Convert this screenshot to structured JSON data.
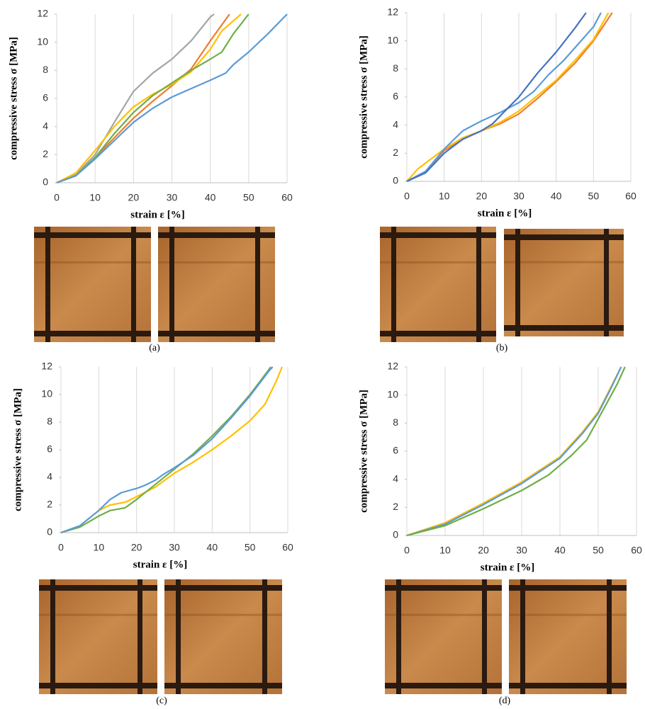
{
  "chart_data": [
    {
      "type": "line",
      "caption": "(a)",
      "ylabel": "compressive stress σ [MPa]",
      "xlabel": "strain ε [%]",
      "xlim": [
        0,
        60
      ],
      "xticks": [
        0,
        10,
        20,
        30,
        40,
        50,
        60
      ],
      "ylim": [
        0,
        12
      ],
      "yticks": [
        0,
        2,
        4,
        6,
        8,
        10,
        12
      ],
      "grid": true,
      "series": [
        {
          "color": "#a5a5a5",
          "x": [
            0,
            5,
            10,
            15,
            20,
            25,
            30,
            35,
            40,
            41
          ],
          "values": [
            0,
            0.6,
            2,
            4.3,
            6.5,
            7.8,
            8.8,
            10.1,
            11.8,
            12
          ]
        },
        {
          "color": "#ed7d31",
          "x": [
            0,
            5,
            10,
            15,
            20,
            25,
            30,
            35,
            40,
            45
          ],
          "values": [
            0,
            0.5,
            1.8,
            3.2,
            4.6,
            5.8,
            6.9,
            8.1,
            10.1,
            12
          ]
        },
        {
          "color": "#ffc000",
          "x": [
            0,
            5,
            10,
            15,
            20,
            25,
            30,
            35,
            40,
            43,
            48
          ],
          "values": [
            0,
            0.7,
            2.3,
            4,
            5.4,
            6.3,
            7,
            7.9,
            9.5,
            10.8,
            12
          ]
        },
        {
          "color": "#70ad47",
          "x": [
            0,
            5,
            10,
            15,
            20,
            25,
            30,
            35,
            40,
            43,
            46,
            50
          ],
          "values": [
            0,
            0.5,
            1.8,
            3.5,
            5,
            6.2,
            7.1,
            8,
            8.8,
            9.3,
            10.6,
            12
          ]
        },
        {
          "color": "#5b9bd5",
          "x": [
            0,
            5,
            10,
            15,
            20,
            25,
            30,
            35,
            40,
            44,
            46,
            50,
            55,
            60
          ],
          "values": [
            0,
            0.5,
            1.7,
            3,
            4.3,
            5.3,
            6.1,
            6.7,
            7.3,
            7.8,
            8.4,
            9.3,
            10.6,
            12
          ]
        }
      ]
    },
    {
      "type": "line",
      "caption": "(b)",
      "ylabel": "compressive stress σ [MPa]",
      "xlabel": "strain ε [%]",
      "xlim": [
        0,
        60
      ],
      "xticks": [
        0,
        10,
        20,
        30,
        40,
        50,
        60
      ],
      "ylim": [
        0,
        12
      ],
      "yticks": [
        0,
        2,
        4,
        6,
        8,
        10,
        12
      ],
      "grid": true,
      "series": [
        {
          "color": "#ed7d31",
          "x": [
            0,
            5,
            10,
            15,
            20,
            25,
            30,
            35,
            40,
            45,
            50,
            55
          ],
          "values": [
            0,
            0.7,
            2.2,
            3,
            3.6,
            4.1,
            4.8,
            5.9,
            7.1,
            8.4,
            10,
            12
          ]
        },
        {
          "color": "#ffc000",
          "x": [
            0,
            3,
            10,
            15,
            20,
            25,
            30,
            35,
            40,
            45,
            50,
            54
          ],
          "values": [
            0,
            0.9,
            2.3,
            3.1,
            3.6,
            4.2,
            5,
            6.1,
            7.2,
            8.6,
            10.1,
            12
          ]
        },
        {
          "color": "#5b9bd5",
          "x": [
            0,
            5,
            10,
            15,
            20,
            25,
            30,
            34,
            38,
            42,
            46,
            50,
            52
          ],
          "values": [
            0,
            0.7,
            2.3,
            3.6,
            4.3,
            4.9,
            5.6,
            6.4,
            7.6,
            8.6,
            9.8,
            11,
            12
          ]
        },
        {
          "color": "#4472c4",
          "x": [
            0,
            5,
            10,
            15,
            20,
            23,
            27,
            30,
            35,
            40,
            45,
            48
          ],
          "values": [
            0,
            0.6,
            2,
            3,
            3.6,
            4.1,
            5.2,
            6,
            7.7,
            9.2,
            10.9,
            12
          ]
        }
      ]
    },
    {
      "type": "line",
      "caption": "(c)",
      "ylabel": "compressive stress σ [MPa]",
      "xlabel": "strain ε [%]",
      "xlim": [
        0,
        60
      ],
      "xticks": [
        0,
        10,
        20,
        30,
        40,
        50,
        60
      ],
      "ylim": [
        0,
        12
      ],
      "yticks": [
        0,
        2,
        4,
        6,
        8,
        10,
        12
      ],
      "grid": true,
      "series": [
        {
          "color": "#ffc000",
          "x": [
            0,
            5,
            10,
            13,
            17,
            20,
            25,
            30,
            35,
            40,
            45,
            50,
            54,
            57,
            58.5
          ],
          "values": [
            0,
            0.5,
            1.6,
            2,
            2.2,
            2.6,
            3.3,
            4.3,
            5.1,
            6,
            7,
            8.1,
            9.3,
            11,
            12
          ]
        },
        {
          "color": "#70ad47",
          "x": [
            0,
            5,
            10,
            13,
            17,
            20,
            25,
            30,
            35,
            40,
            45,
            50,
            55,
            55.5
          ],
          "values": [
            0,
            0.4,
            1.2,
            1.6,
            1.8,
            2.4,
            3.5,
            4.6,
            5.7,
            7,
            8.4,
            10,
            11.8,
            12
          ]
        },
        {
          "color": "#5b9bd5",
          "x": [
            0,
            5,
            10,
            13,
            16,
            20,
            22,
            25,
            27,
            30,
            35,
            40,
            45,
            50,
            55,
            56
          ],
          "values": [
            0,
            0.5,
            1.6,
            2.4,
            2.9,
            3.2,
            3.4,
            3.8,
            4.2,
            4.7,
            5.6,
            6.8,
            8.3,
            9.9,
            11.7,
            12
          ]
        }
      ]
    },
    {
      "type": "line",
      "caption": "(d)",
      "ylabel": "compressive stress σ [MPa]",
      "xlabel": "strain ε [%]",
      "xlim": [
        0,
        60
      ],
      "xticks": [
        0,
        10,
        20,
        30,
        40,
        50,
        60
      ],
      "ylim": [
        0,
        12
      ],
      "yticks": [
        0,
        2,
        4,
        6,
        8,
        10,
        12
      ],
      "grid": true,
      "series": [
        {
          "color": "#ffc000",
          "x": [
            0,
            10,
            20,
            30,
            40,
            46,
            50,
            53,
            56
          ],
          "values": [
            0,
            0.9,
            2.3,
            3.8,
            5.6,
            7.4,
            8.8,
            10.4,
            12
          ]
        },
        {
          "color": "#5b9bd5",
          "x": [
            0,
            10,
            20,
            30,
            40,
            46,
            50,
            53,
            56
          ],
          "values": [
            0,
            0.8,
            2.2,
            3.7,
            5.5,
            7.3,
            8.7,
            10.3,
            12
          ]
        },
        {
          "color": "#70ad47",
          "x": [
            0,
            10,
            20,
            30,
            37,
            43,
            47,
            50,
            55,
            57
          ],
          "values": [
            0,
            0.7,
            1.9,
            3.2,
            4.3,
            5.7,
            6.8,
            8.3,
            10.8,
            12
          ]
        }
      ]
    }
  ]
}
